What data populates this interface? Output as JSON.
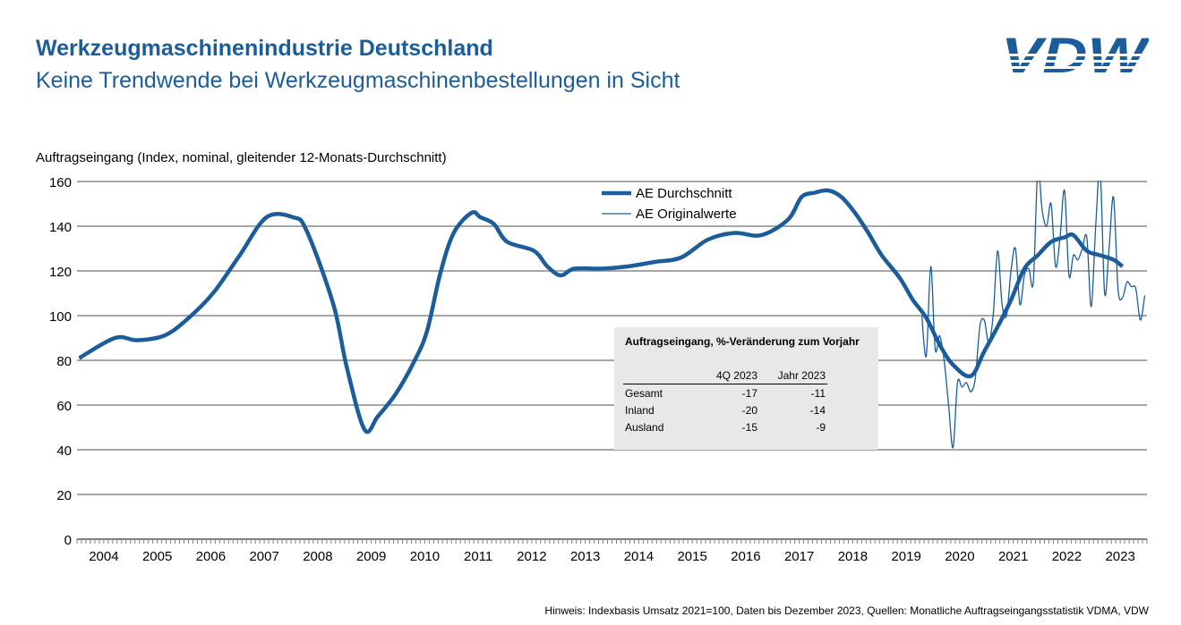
{
  "header": {
    "title": "Werkzeugmaschinenindustrie Deutschland",
    "subtitle": "Keine Trendwende bei Werkzeugmaschinenbestellungen in Sicht",
    "logo_text": "VDW"
  },
  "footnote": "Hinweis: Indexbasis Umsatz 2021=100, Daten bis Dezember 2023, Quellen: Monatliche Auftragseingangsstatistik VDMA, VDW",
  "colors": {
    "brand": "#1a5d9a",
    "series": "#1a5d9a",
    "grid": "#a6a6a6",
    "table_bg": "#e8e8e8"
  },
  "table": {
    "title": "Auftragseingang, %-Veränderung zum Vorjahr",
    "columns": [
      "",
      "4Q 2023",
      "Jahr 2023"
    ],
    "rows": [
      [
        "Gesamt",
        "-17",
        "-11"
      ],
      [
        "Inland",
        "-20",
        "-14"
      ],
      [
        "Ausland",
        "-15",
        "-9"
      ]
    ]
  },
  "chart_data": {
    "type": "line",
    "title": "",
    "ylabel": "Auftragseingang (Index, nominal, gleitender 12-Monats-Durchschnitt)",
    "xlabel": "",
    "ylim": [
      0,
      160
    ],
    "yticks": [
      0,
      20,
      40,
      60,
      80,
      100,
      120,
      140,
      160
    ],
    "xlim": [
      "2004-01",
      "2023-12"
    ],
    "xtick_labels": [
      "2004",
      "2005",
      "2006",
      "2007",
      "2008",
      "2009",
      "2010",
      "2011",
      "2012",
      "2013",
      "2014",
      "2015",
      "2016",
      "2017",
      "2018",
      "2019",
      "2020",
      "2021",
      "2022",
      "2023"
    ],
    "grid": "horizontal",
    "legend_position": "top-center",
    "series": [
      {
        "name": "AE Durchschnitt",
        "style": "thick",
        "points": [
          [
            "2004-01",
            81
          ],
          [
            "2004-09",
            90
          ],
          [
            "2005-02",
            89
          ],
          [
            "2005-08",
            91
          ],
          [
            "2006-01",
            98
          ],
          [
            "2006-07",
            110
          ],
          [
            "2007-01",
            127
          ],
          [
            "2007-07",
            144
          ],
          [
            "2008-01",
            144
          ],
          [
            "2008-04",
            138
          ],
          [
            "2008-10",
            105
          ],
          [
            "2009-01",
            77
          ],
          [
            "2009-05",
            49
          ],
          [
            "2009-08",
            55
          ],
          [
            "2009-12",
            65
          ],
          [
            "2010-04",
            79
          ],
          [
            "2010-07",
            93
          ],
          [
            "2010-10",
            119
          ],
          [
            "2011-01",
            137
          ],
          [
            "2011-05",
            146
          ],
          [
            "2011-07",
            144
          ],
          [
            "2011-10",
            141
          ],
          [
            "2012-01",
            133
          ],
          [
            "2012-07",
            129
          ],
          [
            "2012-10",
            122
          ],
          [
            "2013-01",
            118
          ],
          [
            "2013-04",
            121
          ],
          [
            "2013-10",
            121
          ],
          [
            "2014-04",
            122
          ],
          [
            "2014-10",
            124
          ],
          [
            "2015-04",
            126
          ],
          [
            "2015-10",
            134
          ],
          [
            "2016-04",
            137
          ],
          [
            "2016-10",
            136
          ],
          [
            "2017-04",
            143
          ],
          [
            "2017-07",
            153
          ],
          [
            "2017-10",
            155
          ],
          [
            "2018-01",
            156
          ],
          [
            "2018-04",
            153
          ],
          [
            "2018-07",
            146
          ],
          [
            "2018-10",
            137
          ],
          [
            "2019-01",
            127
          ],
          [
            "2019-05",
            117
          ],
          [
            "2019-08",
            107
          ],
          [
            "2019-11",
            99
          ],
          [
            "2020-02",
            87
          ],
          [
            "2020-05",
            78
          ],
          [
            "2020-09",
            73
          ],
          [
            "2020-12",
            84
          ],
          [
            "2021-03",
            95
          ],
          [
            "2021-06",
            107
          ],
          [
            "2021-09",
            121
          ],
          [
            "2021-12",
            127
          ],
          [
            "2022-03",
            133
          ],
          [
            "2022-06",
            135
          ],
          [
            "2022-08",
            136
          ],
          [
            "2022-11",
            129
          ],
          [
            "2023-02",
            127
          ],
          [
            "2023-05",
            125
          ],
          [
            "2023-07",
            122
          ]
        ]
      },
      {
        "name": "AE Originalwerte",
        "style": "thin",
        "points": [
          [
            "2019-10",
            100
          ],
          [
            "2019-11",
            82
          ],
          [
            "2019-12",
            122
          ],
          [
            "2020-01",
            85
          ],
          [
            "2020-02",
            91
          ],
          [
            "2020-03",
            80
          ],
          [
            "2020-04",
            60
          ],
          [
            "2020-05",
            41
          ],
          [
            "2020-06",
            70
          ],
          [
            "2020-07",
            68
          ],
          [
            "2020-08",
            70
          ],
          [
            "2020-09",
            66
          ],
          [
            "2020-10",
            72
          ],
          [
            "2020-11",
            95
          ],
          [
            "2020-12",
            98
          ],
          [
            "2021-01",
            88
          ],
          [
            "2021-02",
            100
          ],
          [
            "2021-03",
            129
          ],
          [
            "2021-04",
            105
          ],
          [
            "2021-05",
            100
          ],
          [
            "2021-06",
            120
          ],
          [
            "2021-07",
            130
          ],
          [
            "2021-08",
            105
          ],
          [
            "2021-09",
            118
          ],
          [
            "2021-10",
            121
          ],
          [
            "2021-11",
            115
          ],
          [
            "2021-12",
            165
          ],
          [
            "2022-01",
            147
          ],
          [
            "2022-02",
            140
          ],
          [
            "2022-03",
            150
          ],
          [
            "2022-04",
            122
          ],
          [
            "2022-05",
            135
          ],
          [
            "2022-06",
            156
          ],
          [
            "2022-07",
            118
          ],
          [
            "2022-08",
            127
          ],
          [
            "2022-09",
            125
          ],
          [
            "2022-10",
            130
          ],
          [
            "2022-11",
            135
          ],
          [
            "2022-12",
            104
          ],
          [
            "2023-01",
            140
          ],
          [
            "2023-02",
            165
          ],
          [
            "2023-03",
            110
          ],
          [
            "2023-04",
            130
          ],
          [
            "2023-05",
            153
          ],
          [
            "2023-06",
            112
          ],
          [
            "2023-07",
            108
          ],
          [
            "2023-08",
            115
          ],
          [
            "2023-09",
            113
          ],
          [
            "2023-10",
            112
          ],
          [
            "2023-11",
            98
          ],
          [
            "2023-12",
            109
          ]
        ]
      }
    ]
  }
}
